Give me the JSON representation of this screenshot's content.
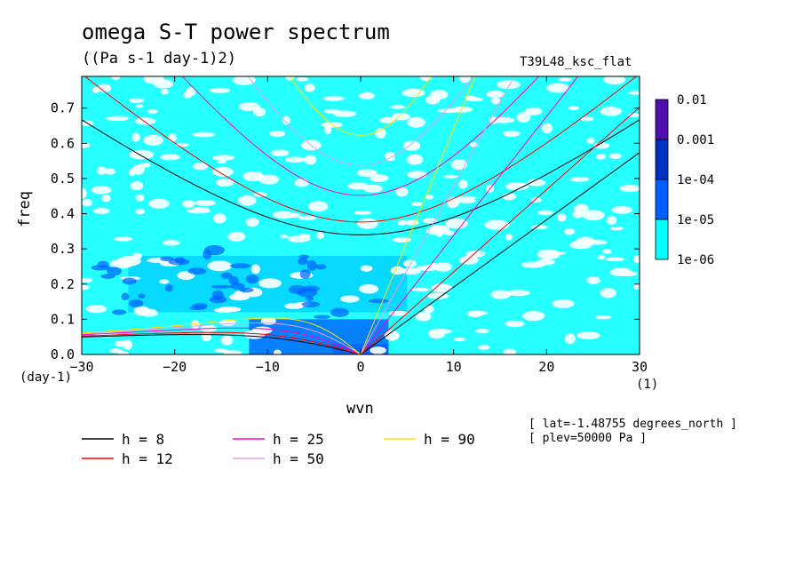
{
  "title": "omega S-T power spectrum",
  "subtitle": "((Pa s-1 day-1)2)",
  "case_label": "T39L48_ksc_flat",
  "meta": [
    "[ lat=-1.48755 degrees_north ]",
    "[ plev=50000 Pa ]"
  ],
  "colors": {
    "levels": [
      "#00ffff",
      "#00d0ff",
      "#0060ff",
      "#0030c0",
      "#5010b0"
    ],
    "h8": "#000000",
    "h12": "#ff0000",
    "h25": "#ff00c8",
    "h50": "#e0a0e8",
    "h90": "#ffe000"
  },
  "chart_data": {
    "type": "heatmap",
    "title": "omega S-T power spectrum",
    "units": "((Pa s-1 day-1)2)",
    "xlabel": "wvn",
    "x_unit": "(1)",
    "ylabel": "freq",
    "y_unit": "(day-1)",
    "xlim": [
      -30,
      30
    ],
    "ylim": [
      0,
      0.79
    ],
    "x_ticks": [
      -30,
      -20,
      -10,
      0,
      10,
      20,
      30
    ],
    "y_ticks": [
      0.0,
      0.1,
      0.2,
      0.3,
      0.4,
      0.5,
      0.6,
      0.7
    ],
    "y_tick_labels": [
      "0.0",
      "0.1",
      "0.2",
      "0.3",
      "0.4",
      "0.5",
      "0.6",
      "0.7"
    ],
    "colorbar": {
      "labels": [
        "0.01",
        "0.001",
        "1e-04",
        "1e-05",
        "1e-06"
      ],
      "values": [
        0.01,
        0.001,
        0.0001,
        1e-05,
        1e-06
      ]
    },
    "power_regions": [
      {
        "level": 1,
        "x": [
          -30,
          30
        ],
        "y": [
          0.0,
          0.79
        ],
        "note": "background band"
      },
      {
        "level": 2,
        "x": [
          -25,
          5
        ],
        "y": [
          0.12,
          0.28
        ]
      },
      {
        "level": 3,
        "x": [
          -12,
          3
        ],
        "y": [
          0.0,
          0.1
        ]
      },
      {
        "level": 3,
        "x": [
          -3,
          3
        ],
        "y": [
          0.0,
          0.03
        ]
      }
    ],
    "series": [
      {
        "name": "h =  8",
        "h": 8,
        "color": "#000000"
      },
      {
        "name": "h = 12",
        "h": 12,
        "color": "#ff0000"
      },
      {
        "name": "h = 25",
        "h": 25,
        "color": "#ff00c8"
      },
      {
        "name": "h = 50",
        "h": 50,
        "color": "#e0a0e8"
      },
      {
        "name": "h = 90",
        "h": 90,
        "color": "#ffe000"
      }
    ]
  }
}
